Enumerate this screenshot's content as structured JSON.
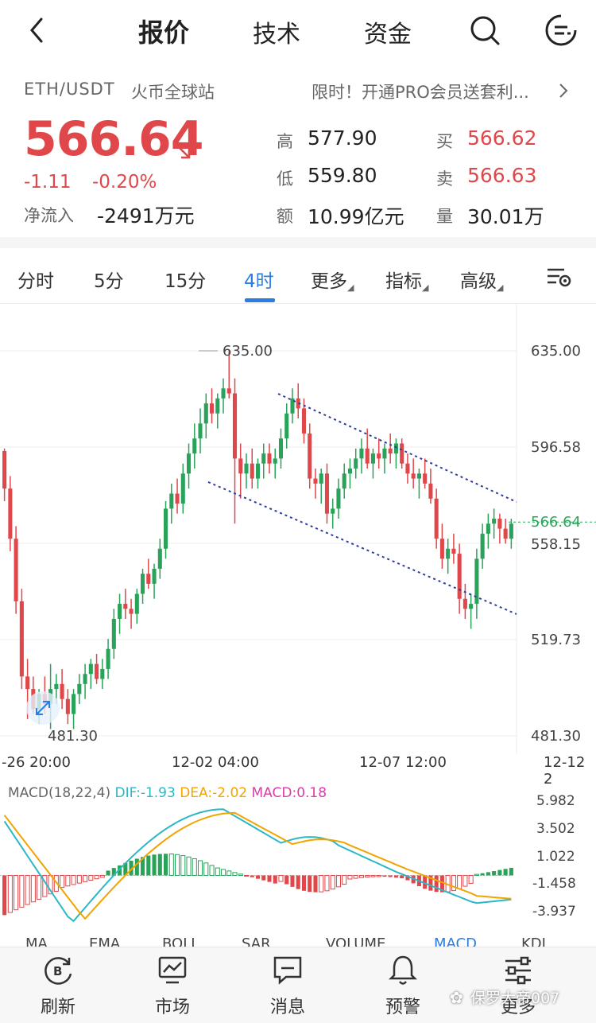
{
  "nav": {
    "tabs": [
      "报价",
      "技术",
      "资金"
    ]
  },
  "ticker": {
    "symbol": "ETH/USDT",
    "exchange": "火币全球站",
    "promo": "限时！开通PRO会员送套利...",
    "price": "566.64",
    "change": "-1.11",
    "change_pct": "-0.20%",
    "netflow_label": "净流入",
    "netflow_value": "-2491万元",
    "stats": [
      {
        "label": "高",
        "value": "577.90"
      },
      {
        "label": "买",
        "value": "566.62"
      },
      {
        "label": "低",
        "value": "559.80"
      },
      {
        "label": "卖",
        "value": "566.63"
      },
      {
        "label": "额",
        "value": "10.99亿元"
      },
      {
        "label": "量",
        "value": "30.01万"
      }
    ]
  },
  "period_tabs": [
    "分时",
    "5分",
    "15分",
    "4时",
    "更多",
    "指标",
    "高级"
  ],
  "chart_data": {
    "type": "candlestick",
    "y_axis_labels": [
      "635.00",
      "596.58",
      "566.64",
      "558.15",
      "519.73",
      "481.30"
    ],
    "x_axis_labels": [
      "-26 20:00",
      "12-02 04:00",
      "12-07 12:00",
      "12-12 2"
    ],
    "high_marker": "635.00",
    "low_marker": "481.30",
    "current_price": "566.64",
    "ylim": [
      481.3,
      635.0
    ],
    "candles_ohlc": [
      [
        595,
        596,
        575,
        580
      ],
      [
        580,
        585,
        555,
        560
      ],
      [
        560,
        565,
        530,
        535
      ],
      [
        535,
        540,
        500,
        505
      ],
      [
        505,
        512,
        488,
        500
      ],
      [
        500,
        505,
        490,
        492
      ],
      [
        492,
        500,
        486,
        498
      ],
      [
        498,
        505,
        490,
        494
      ],
      [
        494,
        510,
        484,
        500
      ],
      [
        500,
        506,
        494,
        502
      ],
      [
        502,
        508,
        492,
        496
      ],
      [
        496,
        500,
        486,
        490
      ],
      [
        490,
        500,
        484,
        498
      ],
      [
        498,
        506,
        494,
        502
      ],
      [
        502,
        510,
        496,
        506
      ],
      [
        506,
        512,
        500,
        510
      ],
      [
        510,
        514,
        502,
        504
      ],
      [
        504,
        512,
        500,
        508
      ],
      [
        508,
        520,
        504,
        516
      ],
      [
        516,
        532,
        512,
        528
      ],
      [
        528,
        538,
        522,
        534
      ],
      [
        534,
        540,
        528,
        532
      ],
      [
        532,
        536,
        524,
        530
      ],
      [
        530,
        540,
        526,
        538
      ],
      [
        538,
        548,
        534,
        546
      ],
      [
        546,
        552,
        540,
        542
      ],
      [
        542,
        550,
        536,
        548
      ],
      [
        548,
        560,
        544,
        556
      ],
      [
        556,
        575,
        552,
        572
      ],
      [
        572,
        582,
        566,
        578
      ],
      [
        578,
        584,
        570,
        574
      ],
      [
        574,
        590,
        570,
        586
      ],
      [
        586,
        598,
        580,
        594
      ],
      [
        594,
        606,
        588,
        600
      ],
      [
        600,
        612,
        594,
        606
      ],
      [
        606,
        618,
        600,
        614
      ],
      [
        614,
        620,
        606,
        610
      ],
      [
        610,
        618,
        604,
        616
      ],
      [
        616,
        624,
        610,
        620
      ],
      [
        620,
        635,
        616,
        618
      ],
      [
        618,
        624,
        566,
        592
      ],
      [
        592,
        598,
        576,
        586
      ],
      [
        586,
        594,
        580,
        590
      ],
      [
        590,
        596,
        580,
        584
      ],
      [
        584,
        592,
        580,
        590
      ],
      [
        590,
        598,
        584,
        594
      ],
      [
        594,
        598,
        586,
        590
      ],
      [
        590,
        596,
        584,
        592
      ],
      [
        592,
        604,
        588,
        600
      ],
      [
        600,
        614,
        596,
        610
      ],
      [
        610,
        620,
        606,
        616
      ],
      [
        616,
        622,
        608,
        612
      ],
      [
        612,
        616,
        598,
        602
      ],
      [
        602,
        606,
        580,
        584
      ],
      [
        584,
        588,
        576,
        582
      ],
      [
        582,
        588,
        574,
        586
      ],
      [
        586,
        590,
        566,
        570
      ],
      [
        570,
        576,
        564,
        572
      ],
      [
        572,
        584,
        568,
        580
      ],
      [
        580,
        590,
        576,
        586
      ],
      [
        586,
        592,
        580,
        588
      ],
      [
        588,
        596,
        584,
        592
      ],
      [
        592,
        600,
        586,
        596
      ],
      [
        596,
        604,
        588,
        590
      ],
      [
        590,
        596,
        584,
        594
      ],
      [
        594,
        600,
        588,
        592
      ],
      [
        592,
        598,
        586,
        596
      ],
      [
        596,
        602,
        590,
        594
      ],
      [
        594,
        600,
        588,
        598
      ],
      [
        598,
        600,
        588,
        590
      ],
      [
        590,
        594,
        582,
        586
      ],
      [
        586,
        592,
        580,
        584
      ],
      [
        584,
        588,
        576,
        586
      ],
      [
        586,
        592,
        580,
        582
      ],
      [
        582,
        588,
        574,
        576
      ],
      [
        576,
        580,
        556,
        560
      ],
      [
        560,
        566,
        548,
        552
      ],
      [
        552,
        560,
        546,
        556
      ],
      [
        556,
        562,
        550,
        554
      ],
      [
        554,
        558,
        530,
        536
      ],
      [
        536,
        542,
        528,
        532
      ],
      [
        532,
        538,
        524,
        534
      ],
      [
        534,
        556,
        528,
        552
      ],
      [
        552,
        566,
        548,
        562
      ],
      [
        562,
        570,
        556,
        566
      ],
      [
        566,
        572,
        560,
        568
      ],
      [
        568,
        570,
        558,
        564
      ],
      [
        564,
        568,
        558,
        560
      ],
      [
        560,
        568,
        556,
        566
      ]
    ],
    "macd": {
      "params": "MACD(18,22,4)",
      "dif": "DIF:-1.93",
      "dea": "DEA:-2.02",
      "macd": "MACD:0.18",
      "y_axis_labels": [
        "5.982",
        "3.502",
        "1.022",
        "-1.458",
        "-3.937"
      ],
      "ylim": [
        -3.937,
        5.982
      ]
    }
  },
  "bottom_indicator_tabs": [
    "MA",
    "EMA",
    "BOLL",
    "SAR",
    "VOLUME",
    "MACD",
    "KDJ"
  ],
  "bottom_nav": [
    "刷新",
    "市场",
    "消息",
    "预警",
    "更多"
  ],
  "watermark": "保罗大帝007"
}
